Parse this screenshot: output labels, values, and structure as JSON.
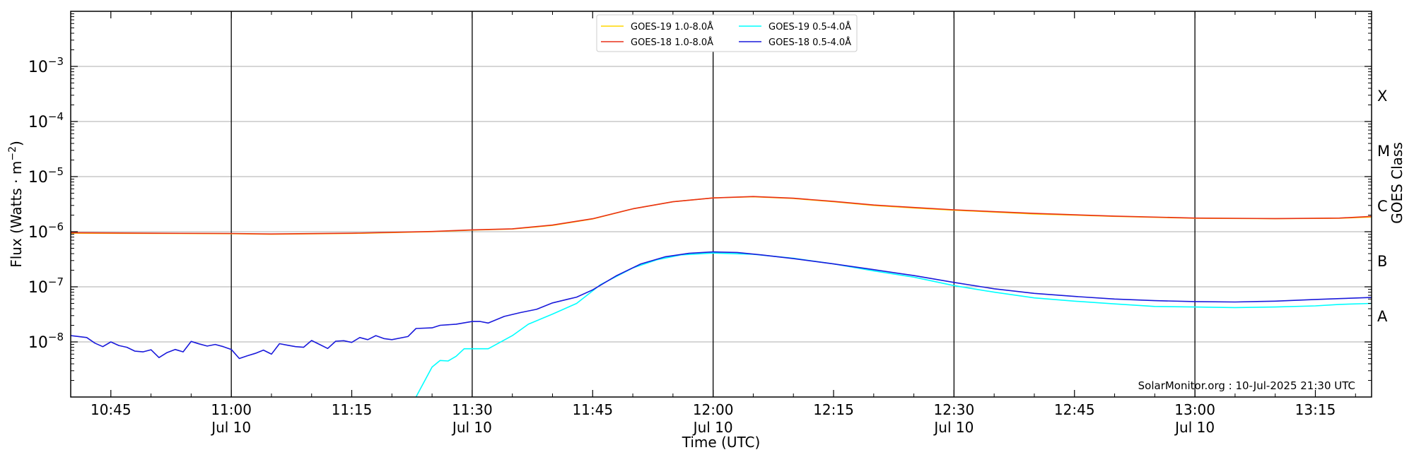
{
  "chart_data": {
    "type": "line",
    "xlabel": "Time (UTC)",
    "ylabel": "Flux (Watts · m⁻²)",
    "right_ylabel": "GOES Class",
    "y_scale": "log",
    "ylim": [
      1e-09,
      0.01
    ],
    "xlim": [
      "10:40",
      "13:22"
    ],
    "y_ticks": [
      {
        "value": 1e-08,
        "base": "10",
        "exp": "−8"
      },
      {
        "value": 1e-07,
        "base": "10",
        "exp": "−7"
      },
      {
        "value": 1e-06,
        "base": "10",
        "exp": "−6"
      },
      {
        "value": 1e-05,
        "base": "10",
        "exp": "−5"
      },
      {
        "value": 0.0001,
        "base": "10",
        "exp": "−4"
      },
      {
        "value": 0.001,
        "base": "10",
        "exp": "−3"
      }
    ],
    "x_ticks": [
      {
        "time": "10:45",
        "label": "10:45",
        "date": ""
      },
      {
        "time": "11:00",
        "label": "11:00",
        "date": "Jul 10"
      },
      {
        "time": "11:15",
        "label": "11:15",
        "date": ""
      },
      {
        "time": "11:30",
        "label": "11:30",
        "date": "Jul 10"
      },
      {
        "time": "11:45",
        "label": "11:45",
        "date": ""
      },
      {
        "time": "12:00",
        "label": "12:00",
        "date": "Jul 10"
      },
      {
        "time": "12:15",
        "label": "12:15",
        "date": ""
      },
      {
        "time": "12:30",
        "label": "12:30",
        "date": "Jul 10"
      },
      {
        "time": "12:45",
        "label": "12:45",
        "date": ""
      },
      {
        "time": "13:00",
        "label": "13:00",
        "date": "Jul 10"
      },
      {
        "time": "13:15",
        "label": "13:15",
        "date": ""
      }
    ],
    "vertical_lines": [
      "11:00",
      "11:30",
      "12:00",
      "12:30",
      "13:00"
    ],
    "goes_classes": [
      {
        "label": "A",
        "value": 3e-08
      },
      {
        "label": "B",
        "value": 3e-07
      },
      {
        "label": "C",
        "value": 3e-06
      },
      {
        "label": "M",
        "value": 3e-05
      },
      {
        "label": "X",
        "value": 0.0003
      }
    ],
    "grid": "horizontal",
    "legend_position": "top-center",
    "annotation": "SolarMonitor.org : 10-Jul-2025 21:30 UTC",
    "series": [
      {
        "name": "GOES-19 1.0-8.0Å",
        "color": "#FFD700",
        "points": [
          [
            "10:40",
            9.4e-07
          ],
          [
            "10:50",
            9.3e-07
          ],
          [
            "11:00",
            9.2e-07
          ],
          [
            "11:05",
            9e-07
          ],
          [
            "11:15",
            9.3e-07
          ],
          [
            "11:25",
            1e-06
          ],
          [
            "11:30",
            1.07e-06
          ],
          [
            "11:35",
            1.12e-06
          ],
          [
            "11:40",
            1.3e-06
          ],
          [
            "11:45",
            1.7e-06
          ],
          [
            "11:50",
            2.6e-06
          ],
          [
            "11:55",
            3.5e-06
          ],
          [
            "12:00",
            4.1e-06
          ],
          [
            "12:05",
            4.3e-06
          ],
          [
            "12:10",
            4e-06
          ],
          [
            "12:15",
            3.5e-06
          ],
          [
            "12:20",
            3e-06
          ],
          [
            "12:25",
            2.7e-06
          ],
          [
            "12:30",
            2.45e-06
          ],
          [
            "12:40",
            2.1e-06
          ],
          [
            "12:50",
            1.9e-06
          ],
          [
            "13:00",
            1.75e-06
          ],
          [
            "13:10",
            1.72e-06
          ],
          [
            "13:18",
            1.75e-06
          ],
          [
            "13:22",
            1.85e-06
          ]
        ]
      },
      {
        "name": "GOES-18 1.0-8.0Å",
        "color": "#E8311A",
        "points": [
          [
            "10:40",
            9.6e-07
          ],
          [
            "10:50",
            9.4e-07
          ],
          [
            "11:00",
            9.3e-07
          ],
          [
            "11:05",
            9.1e-07
          ],
          [
            "11:15",
            9.4e-07
          ],
          [
            "11:25",
            1.01e-06
          ],
          [
            "11:30",
            1.08e-06
          ],
          [
            "11:35",
            1.13e-06
          ],
          [
            "11:40",
            1.32e-06
          ],
          [
            "11:45",
            1.72e-06
          ],
          [
            "11:50",
            2.6e-06
          ],
          [
            "11:55",
            3.5e-06
          ],
          [
            "12:00",
            4.1e-06
          ],
          [
            "12:05",
            4.35e-06
          ],
          [
            "12:10",
            4.05e-06
          ],
          [
            "12:15",
            3.55e-06
          ],
          [
            "12:20",
            3.05e-06
          ],
          [
            "12:25",
            2.75e-06
          ],
          [
            "12:30",
            2.5e-06
          ],
          [
            "12:40",
            2.15e-06
          ],
          [
            "12:50",
            1.92e-06
          ],
          [
            "13:00",
            1.77e-06
          ],
          [
            "13:10",
            1.73e-06
          ],
          [
            "13:18",
            1.77e-06
          ],
          [
            "13:22",
            1.9e-06
          ]
        ]
      },
      {
        "name": "GOES-19 0.5-4.0Å",
        "color": "#00FFFF",
        "points": [
          [
            "11:23",
            1e-09
          ],
          [
            "11:25",
            3.5e-09
          ],
          [
            "11:26",
            4.6e-09
          ],
          [
            "11:27",
            4.5e-09
          ],
          [
            "11:28",
            5.5e-09
          ],
          [
            "11:29",
            7.5e-09
          ],
          [
            "11:32",
            7.5e-09
          ],
          [
            "11:35",
            1.3e-08
          ],
          [
            "11:37",
            2.1e-08
          ],
          [
            "11:40",
            3.2e-08
          ],
          [
            "11:43",
            5e-08
          ],
          [
            "11:46",
            1.1e-07
          ],
          [
            "11:50",
            2.2e-07
          ],
          [
            "11:53",
            3.1e-07
          ],
          [
            "11:56",
            3.8e-07
          ],
          [
            "12:00",
            4.1e-07
          ],
          [
            "12:05",
            3.9e-07
          ],
          [
            "12:10",
            3.3e-07
          ],
          [
            "12:15",
            2.6e-07
          ],
          [
            "12:20",
            1.95e-07
          ],
          [
            "12:25",
            1.5e-07
          ],
          [
            "12:30",
            1.05e-07
          ],
          [
            "12:35",
            8e-08
          ],
          [
            "12:40",
            6.3e-08
          ],
          [
            "12:45",
            5.5e-08
          ],
          [
            "12:50",
            4.9e-08
          ],
          [
            "12:55",
            4.4e-08
          ],
          [
            "13:00",
            4.3e-08
          ],
          [
            "13:05",
            4.2e-08
          ],
          [
            "13:10",
            4.3e-08
          ],
          [
            "13:15",
            4.5e-08
          ],
          [
            "13:18",
            4.8e-08
          ],
          [
            "13:22",
            5e-08
          ]
        ]
      },
      {
        "name": "GOES-18 0.5-4.0Å",
        "color": "#1A1ADB",
        "points": [
          [
            "10:40",
            1.3e-08
          ],
          [
            "10:41",
            1.25e-08
          ],
          [
            "10:42",
            1.2e-08
          ],
          [
            "10:43",
            9.5e-09
          ],
          [
            "10:44",
            8.2e-09
          ],
          [
            "10:45",
            1e-08
          ],
          [
            "10:46",
            8.6e-09
          ],
          [
            "10:47",
            8e-09
          ],
          [
            "10:48",
            6.8e-09
          ],
          [
            "10:49",
            6.6e-09
          ],
          [
            "10:50",
            7.2e-09
          ],
          [
            "10:51",
            5.2e-09
          ],
          [
            "10:52",
            6.4e-09
          ],
          [
            "10:53",
            7.3e-09
          ],
          [
            "10:54",
            6.6e-09
          ],
          [
            "10:55",
            1.02e-08
          ],
          [
            "10:56",
            9.2e-09
          ],
          [
            "10:57",
            8.4e-09
          ],
          [
            "10:58",
            9e-09
          ],
          [
            "10:59",
            8.2e-09
          ],
          [
            "11:00",
            7.3e-09
          ],
          [
            "11:01",
            5e-09
          ],
          [
            "11:02",
            5.6e-09
          ],
          [
            "11:03",
            6.2e-09
          ],
          [
            "11:04",
            7.1e-09
          ],
          [
            "11:05",
            6e-09
          ],
          [
            "11:06",
            9.3e-09
          ],
          [
            "11:07",
            8.7e-09
          ],
          [
            "11:08",
            8.2e-09
          ],
          [
            "11:09",
            8e-09
          ],
          [
            "11:10",
            1.06e-08
          ],
          [
            "11:11",
            9e-09
          ],
          [
            "11:12",
            7.6e-09
          ],
          [
            "11:13",
            1.03e-08
          ],
          [
            "11:14",
            1.05e-08
          ],
          [
            "11:15",
            9.8e-09
          ],
          [
            "11:16",
            1.2e-08
          ],
          [
            "11:17",
            1.1e-08
          ],
          [
            "11:18",
            1.3e-08
          ],
          [
            "11:19",
            1.15e-08
          ],
          [
            "11:20",
            1.1e-08
          ],
          [
            "11:22",
            1.25e-08
          ],
          [
            "11:23",
            1.75e-08
          ],
          [
            "11:25",
            1.8e-08
          ],
          [
            "11:26",
            2e-08
          ],
          [
            "11:28",
            2.1e-08
          ],
          [
            "11:30",
            2.35e-08
          ],
          [
            "11:31",
            2.35e-08
          ],
          [
            "11:32",
            2.2e-08
          ],
          [
            "11:34",
            2.9e-08
          ],
          [
            "11:36",
            3.4e-08
          ],
          [
            "11:38",
            3.9e-08
          ],
          [
            "11:40",
            5.1e-08
          ],
          [
            "11:42",
            6e-08
          ],
          [
            "11:43",
            6.5e-08
          ],
          [
            "11:45",
            8.8e-08
          ],
          [
            "11:48",
            1.6e-07
          ],
          [
            "11:51",
            2.6e-07
          ],
          [
            "11:54",
            3.5e-07
          ],
          [
            "11:57",
            4.05e-07
          ],
          [
            "12:00",
            4.3e-07
          ],
          [
            "12:03",
            4.2e-07
          ],
          [
            "12:06",
            3.8e-07
          ],
          [
            "12:10",
            3.25e-07
          ],
          [
            "12:15",
            2.6e-07
          ],
          [
            "12:20",
            2.05e-07
          ],
          [
            "12:25",
            1.6e-07
          ],
          [
            "12:30",
            1.2e-07
          ],
          [
            "12:35",
            9.2e-08
          ],
          [
            "12:40",
            7.6e-08
          ],
          [
            "12:45",
            6.7e-08
          ],
          [
            "12:50",
            6e-08
          ],
          [
            "12:55",
            5.6e-08
          ],
          [
            "13:00",
            5.4e-08
          ],
          [
            "13:05",
            5.3e-08
          ],
          [
            "13:10",
            5.5e-08
          ],
          [
            "13:15",
            5.9e-08
          ],
          [
            "13:18",
            6.1e-08
          ],
          [
            "13:22",
            6.4e-08
          ]
        ]
      }
    ]
  }
}
